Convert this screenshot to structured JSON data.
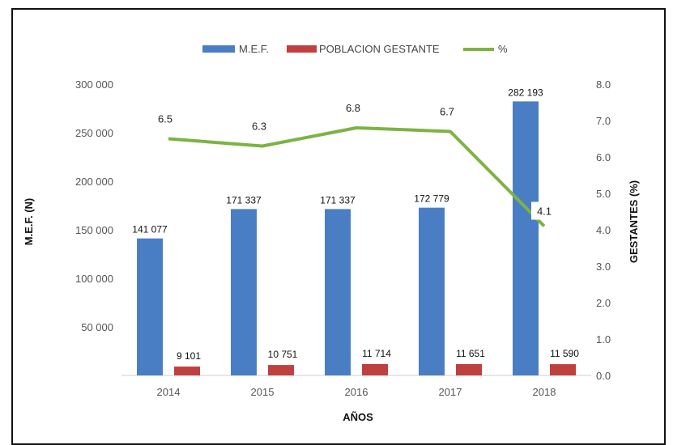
{
  "chart_data": {
    "type": "bar",
    "categories": [
      "2014",
      "2015",
      "2016",
      "2017",
      "2018"
    ],
    "series": [
      {
        "name": "M.E.F.",
        "type": "bar",
        "axis": "left",
        "color": "#4a7ec4",
        "values": [
          141077,
          171337,
          171337,
          172779,
          282193
        ],
        "labels": [
          "141 077",
          "171 337",
          "171 337",
          "172 779",
          "282 193"
        ]
      },
      {
        "name": "POBLACION GESTANTE",
        "type": "bar",
        "axis": "left",
        "color": "#c0403f",
        "values": [
          9101,
          10751,
          11714,
          11651,
          11590
        ],
        "labels": [
          "9 101",
          "10 751",
          "11 714",
          "11 651",
          "11 590"
        ]
      },
      {
        "name": "%",
        "type": "line",
        "axis": "right",
        "color": "#7cb342",
        "values": [
          6.5,
          6.3,
          6.8,
          6.7,
          4.1
        ],
        "labels": [
          "6.5",
          "6.3",
          "6.8",
          "6.7",
          "4.1"
        ]
      }
    ],
    "xlabel": "AÑOS",
    "ylabel": "M.E.F. (N)",
    "y2label": "GESTANTES (%)",
    "ylim": [
      0,
      300000
    ],
    "y2lim": [
      0,
      8.0
    ],
    "yticks": [
      "50 000",
      "100 000",
      "150 000",
      "200 000",
      "250 000",
      "300 000"
    ],
    "y2ticks": [
      "0.0",
      "1.0",
      "2.0",
      "3.0",
      "4.0",
      "5.0",
      "6.0",
      "7.0",
      "8.0"
    ],
    "legend_position": "top",
    "grid": false
  }
}
